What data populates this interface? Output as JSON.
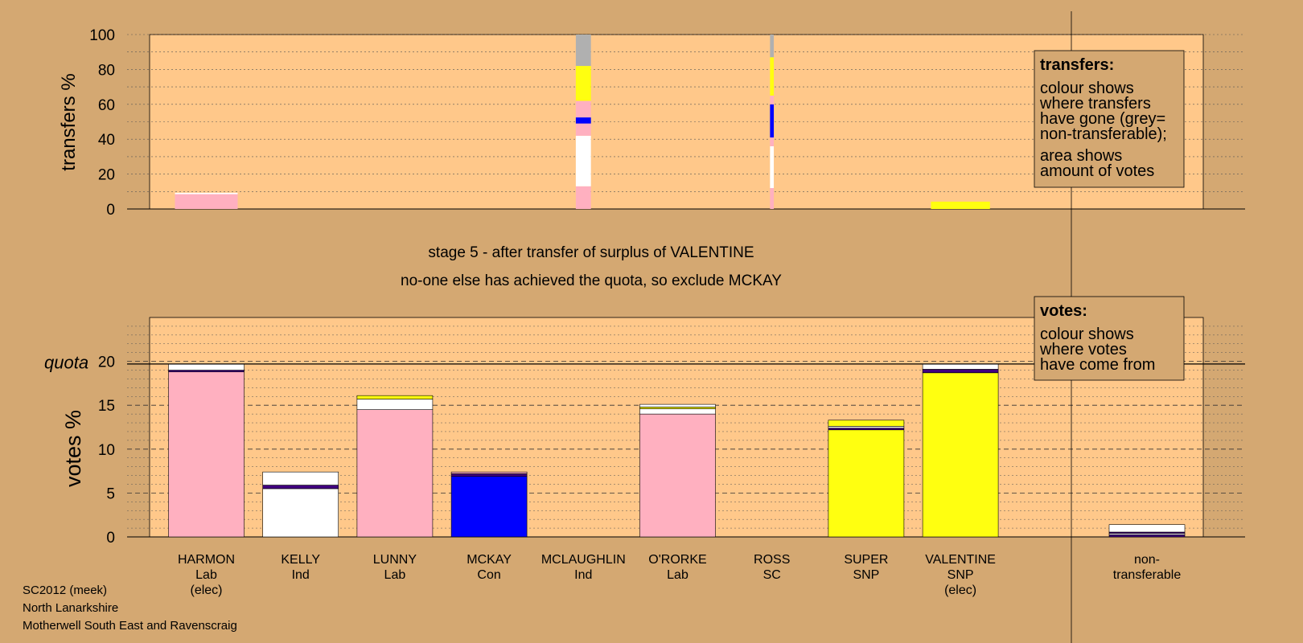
{
  "colors": {
    "background": "#d4a872",
    "plot_bg": "#ffc88a",
    "Lab": "#ffb0c0",
    "Ind": "#ffffff",
    "Con": "#0000ff",
    "SNP": "#ffff10",
    "SC": "#b040b0",
    "nontransferable": "#b0b0b0",
    "dark": "#400080"
  },
  "chart_data": [
    {
      "type": "bar",
      "name": "transfers",
      "ylabel": "transfers %",
      "ylim": [
        0,
        100
      ],
      "yticks": [
        0,
        20,
        40,
        60,
        80,
        100
      ],
      "categories": [
        "HARMON",
        "KELLY",
        "LUNNY",
        "MCKAY",
        "MCLAUGHLIN",
        "O'RORKE",
        "ROSS",
        "SUPER",
        "VALENTINE"
      ],
      "bars": [
        {
          "candidate": "HARMON",
          "width_frac": 0.83,
          "segments": [
            {
              "color": "Lab",
              "from": 0,
              "to": 8.5
            },
            {
              "color": "Ind",
              "from": 8.5,
              "to": 9.3
            }
          ]
        },
        {
          "candidate": "MCLAUGHLIN",
          "width_frac": 0.2,
          "segments": [
            {
              "color": "Lab",
              "from": 0,
              "to": 13
            },
            {
              "color": "Ind",
              "from": 13,
              "to": 42
            },
            {
              "color": "Lab",
              "from": 42,
              "to": 49
            },
            {
              "color": "Con",
              "from": 49,
              "to": 52.5
            },
            {
              "color": "Lab",
              "from": 52.5,
              "to": 62
            },
            {
              "color": "SNP",
              "from": 62,
              "to": 82
            },
            {
              "color": "nontransferable",
              "from": 82,
              "to": 100
            }
          ]
        },
        {
          "candidate": "ROSS",
          "width_frac": 0.05,
          "segments": [
            {
              "color": "Lab",
              "from": 0,
              "to": 12
            },
            {
              "color": "Ind",
              "from": 12,
              "to": 36
            },
            {
              "color": "Lab",
              "from": 36,
              "to": 41
            },
            {
              "color": "Con",
              "from": 41,
              "to": 60
            },
            {
              "color": "Lab",
              "from": 60,
              "to": 65
            },
            {
              "color": "SNP",
              "from": 65,
              "to": 87
            },
            {
              "color": "nontransferable",
              "from": 87,
              "to": 100
            }
          ]
        },
        {
          "candidate": "VALENTINE",
          "width_frac": 0.78,
          "segments": [
            {
              "color": "SNP",
              "from": 0,
              "to": 4.2
            }
          ]
        }
      ],
      "legend": {
        "title": "transfers:",
        "lines": [
          "colour shows",
          "where transfers",
          "have gone (grey=",
          "non-transferable);",
          "area shows",
          "amount of votes"
        ]
      }
    },
    {
      "type": "bar",
      "name": "votes",
      "ylabel": "votes %",
      "ylim": [
        0,
        25
      ],
      "yticks": [
        0,
        5,
        10,
        15,
        20
      ],
      "quota_label": "quota",
      "quota": 19.7,
      "categories": [
        "HARMON",
        "KELLY",
        "LUNNY",
        "MCKAY",
        "MCLAUGHLIN",
        "O'RORKE",
        "ROSS",
        "SUPER",
        "VALENTINE",
        "non-transferable"
      ],
      "bars": [
        {
          "candidate": "HARMON",
          "segments": [
            {
              "color": "Lab",
              "from": 0,
              "to": 18.8
            },
            {
              "color": "dark",
              "from": 18.8,
              "to": 19.0
            },
            {
              "color": "Ind",
              "from": 19.0,
              "to": 19.7
            }
          ]
        },
        {
          "candidate": "KELLY",
          "segments": [
            {
              "color": "Ind",
              "from": 0,
              "to": 5.5
            },
            {
              "color": "dark",
              "from": 5.5,
              "to": 5.9
            },
            {
              "color": "Ind",
              "from": 5.9,
              "to": 7.4
            }
          ]
        },
        {
          "candidate": "LUNNY",
          "segments": [
            {
              "color": "Lab",
              "from": 0,
              "to": 14.5
            },
            {
              "color": "Ind",
              "from": 14.5,
              "to": 15.7
            },
            {
              "color": "SNP",
              "from": 15.7,
              "to": 16.1
            }
          ]
        },
        {
          "candidate": "MCKAY",
          "segments": [
            {
              "color": "Con",
              "from": 0,
              "to": 6.9
            },
            {
              "color": "dark",
              "from": 6.9,
              "to": 7.2
            },
            {
              "color": "Lab",
              "from": 7.2,
              "to": 7.4
            }
          ]
        },
        {
          "candidate": "O'RORKE",
          "segments": [
            {
              "color": "Lab",
              "from": 0,
              "to": 14.0
            },
            {
              "color": "Ind",
              "from": 14.0,
              "to": 14.6
            },
            {
              "color": "SNP",
              "from": 14.6,
              "to": 14.8
            },
            {
              "color": "Ind",
              "from": 14.8,
              "to": 15.1
            }
          ]
        },
        {
          "candidate": "SUPER",
          "segments": [
            {
              "color": "SNP",
              "from": 0,
              "to": 12.2
            },
            {
              "color": "dark",
              "from": 12.2,
              "to": 12.4
            },
            {
              "color": "Ind",
              "from": 12.4,
              "to": 12.6
            },
            {
              "color": "SNP",
              "from": 12.6,
              "to": 13.3
            }
          ]
        },
        {
          "candidate": "VALENTINE",
          "segments": [
            {
              "color": "SNP",
              "from": 0,
              "to": 18.7
            },
            {
              "color": "dark",
              "from": 18.7,
              "to": 19.1
            },
            {
              "color": "Ind",
              "from": 19.1,
              "to": 19.7
            }
          ]
        },
        {
          "candidate": "non-transferable",
          "segments": [
            {
              "color": "dark",
              "from": 0,
              "to": 0.25
            },
            {
              "color": "Ind",
              "from": 0.25,
              "to": 0.4
            },
            {
              "color": "dark",
              "from": 0.4,
              "to": 0.55
            },
            {
              "color": "Ind",
              "from": 0.55,
              "to": 1.4
            }
          ]
        }
      ],
      "legend": {
        "title": "votes:",
        "lines": [
          "colour shows",
          "where votes",
          "have come from"
        ]
      }
    }
  ],
  "stage_title": "stage 5 - after transfer of surplus of VALENTINE",
  "stage_subtitle": "no-one else has achieved the quota, so exclude MCKAY",
  "candidate_labels": [
    [
      "HARMON",
      "Lab",
      "(elec)"
    ],
    [
      "KELLY",
      "Ind"
    ],
    [
      "LUNNY",
      "Lab"
    ],
    [
      "MCKAY",
      "Con"
    ],
    [
      "MCLAUGHLIN",
      "Ind"
    ],
    [
      "O'RORKE",
      "Lab"
    ],
    [
      "ROSS",
      "SC"
    ],
    [
      "SUPER",
      "SNP"
    ],
    [
      "VALENTINE",
      "SNP",
      "(elec)"
    ],
    [
      "non-",
      "transferable"
    ]
  ],
  "footer": [
    "SC2012 (meek)",
    "North Lanarkshire",
    "Motherwell South East and Ravenscraig"
  ]
}
